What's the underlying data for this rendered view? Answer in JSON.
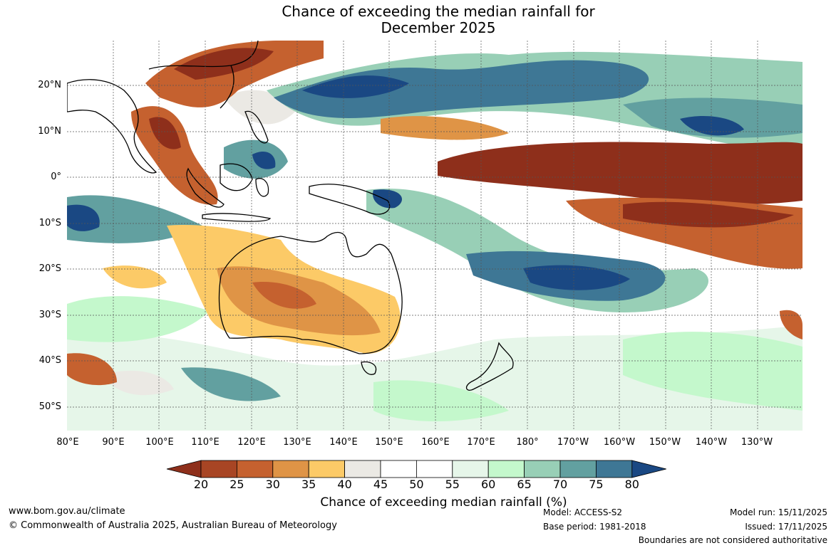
{
  "title": {
    "line1": "Chance of exceeding the median rainfall for",
    "line2": "December 2025"
  },
  "map": {
    "lat_labels": [
      "20°N",
      "10°N",
      "0°",
      "10°S",
      "20°S",
      "30°S",
      "40°S",
      "50°S"
    ],
    "lon_labels": [
      "80°E",
      "90°E",
      "100°E",
      "110°E",
      "120°E",
      "130°E",
      "140°E",
      "150°E",
      "160°E",
      "170°E",
      "180°",
      "170°W",
      "160°W",
      "150°W",
      "140°W",
      "130°W"
    ],
    "regions": [
      "Indian Ocean",
      "Maritime Continent",
      "Australia",
      "New Zealand",
      "Pacific Ocean"
    ]
  },
  "legend": {
    "ticks": [
      "20",
      "25",
      "30",
      "35",
      "40",
      "45",
      "50",
      "55",
      "60",
      "65",
      "70",
      "75",
      "80"
    ],
    "colors": [
      "#8e2f1b",
      "#a84524",
      "#c5612f",
      "#df9446",
      "#fcca67",
      "#ebe9e4",
      "#ffffff",
      "#ffffff",
      "#e6f6e9",
      "#c4f8cc",
      "#98cfb6",
      "#62a0a0",
      "#3e7795",
      "#1a4883"
    ],
    "label": "Chance of exceeding median rainfall (%)"
  },
  "footer": {
    "url": "www.bom.gov.au/climate",
    "copyright": "© Commonwealth of Australia 2025, Australian Bureau of Meteorology",
    "model": "Model: ACCESS-S2",
    "base_period": "Base period: 1981-2018",
    "model_run": "Model run: 15/11/2025",
    "issued": "Issued: 17/11/2025",
    "disclaimer": "Boundaries are not considered authoritative"
  }
}
